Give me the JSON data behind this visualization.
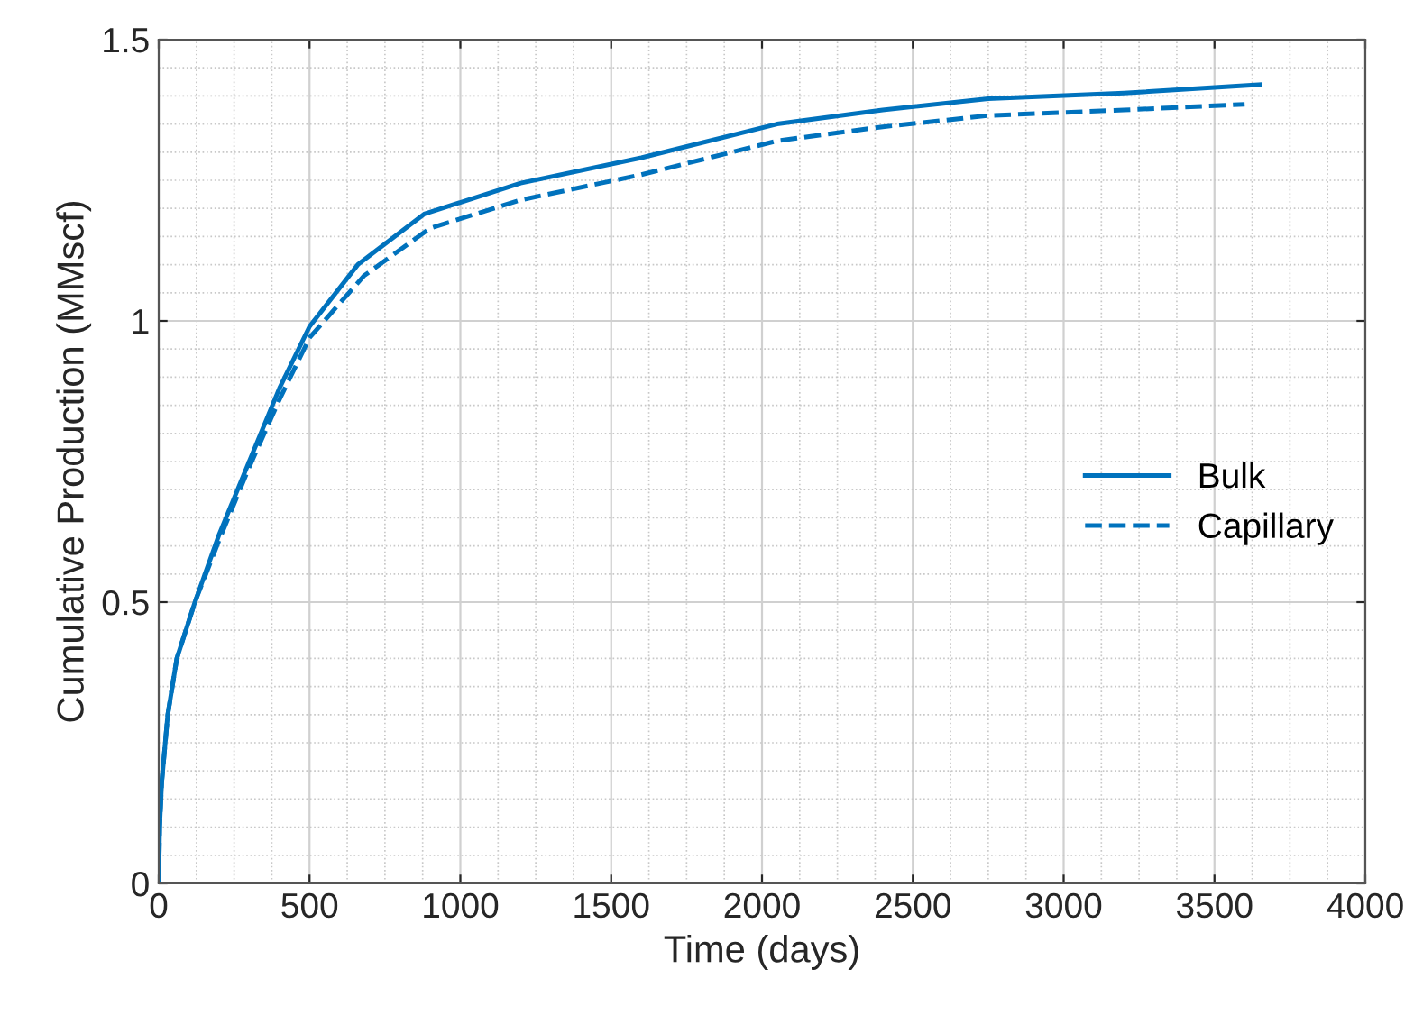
{
  "chart_data": {
    "type": "line",
    "xlabel": "Time (days)",
    "ylabel": "Cumulative Production (MMscf)",
    "xlim": [
      0,
      4000
    ],
    "xticks": [
      0,
      500,
      1000,
      1500,
      2000,
      2500,
      3000,
      3500,
      4000
    ],
    "ylim": [
      0,
      1.5
    ],
    "yticks": [
      0,
      0.5,
      1,
      1.5
    ],
    "grid": true,
    "legend": "right",
    "marker": "none",
    "series": [
      {
        "name": "Bulk",
        "color": "#0072bd",
        "line_style": "solid",
        "x": [
          0,
          3,
          10,
          30,
          60,
          120,
          200,
          300,
          400,
          500,
          660,
          880,
          1200,
          1600,
          2050,
          2400,
          2750,
          3200,
          3650
        ],
        "values": [
          0,
          0.1,
          0.18,
          0.3,
          0.4,
          0.5,
          0.62,
          0.75,
          0.88,
          0.99,
          1.1,
          1.19,
          1.245,
          1.29,
          1.35,
          1.375,
          1.395,
          1.405,
          1.42
        ]
      },
      {
        "name": "Capillary",
        "color": "#0072bd",
        "line_style": "dashed",
        "x": [
          0,
          3,
          10,
          30,
          60,
          120,
          200,
          300,
          400,
          500,
          680,
          900,
          1200,
          1600,
          2050,
          2400,
          2750,
          3200,
          3600
        ],
        "values": [
          0,
          0.1,
          0.18,
          0.3,
          0.4,
          0.5,
          0.61,
          0.74,
          0.86,
          0.97,
          1.08,
          1.165,
          1.215,
          1.26,
          1.32,
          1.345,
          1.365,
          1.375,
          1.385
        ]
      }
    ]
  }
}
